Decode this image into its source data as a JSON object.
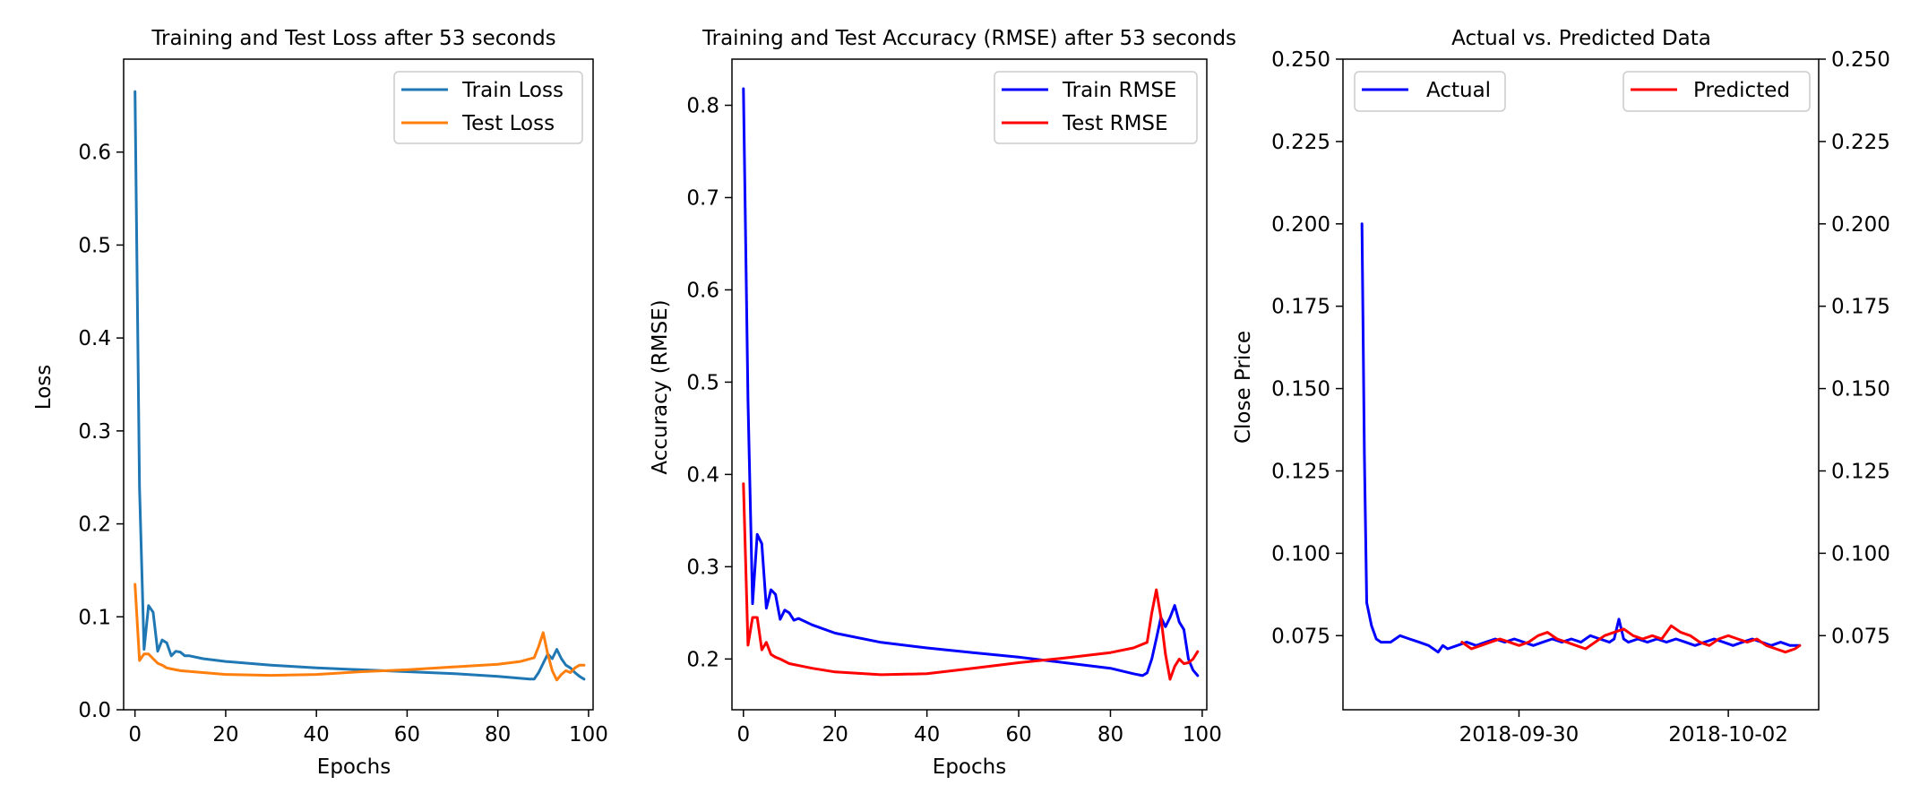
{
  "chart_data": [
    {
      "type": "line",
      "title": "Training and Test Loss after 53 seconds",
      "xlabel": "Epochs",
      "ylabel": "Loss",
      "xlim": [
        -2.5,
        101
      ],
      "ylim": [
        0,
        0.7
      ],
      "xticks": [
        0,
        20,
        40,
        60,
        80,
        100
      ],
      "yticks": [
        0.0,
        0.1,
        0.2,
        0.3,
        0.4,
        0.5,
        0.6
      ],
      "tick_decimals": 1,
      "legend": "upper right",
      "series": [
        {
          "name": "Train Loss",
          "color": "#1f77b4",
          "points": [
            [
              0,
              0.665
            ],
            [
              1,
              0.24
            ],
            [
              2,
              0.065
            ],
            [
              3,
              0.112
            ],
            [
              4,
              0.105
            ],
            [
              5,
              0.063
            ],
            [
              6,
              0.075
            ],
            [
              7,
              0.072
            ],
            [
              8,
              0.058
            ],
            [
              9,
              0.063
            ],
            [
              10,
              0.062
            ],
            [
              11,
              0.058
            ],
            [
              12,
              0.058
            ],
            [
              15,
              0.055
            ],
            [
              20,
              0.052
            ],
            [
              30,
              0.048
            ],
            [
              40,
              0.045
            ],
            [
              50,
              0.043
            ],
            [
              60,
              0.041
            ],
            [
              70,
              0.039
            ],
            [
              80,
              0.036
            ],
            [
              87,
              0.033
            ],
            [
              88,
              0.033
            ],
            [
              89,
              0.04
            ],
            [
              90,
              0.05
            ],
            [
              91,
              0.06
            ],
            [
              92,
              0.055
            ],
            [
              93,
              0.065
            ],
            [
              94,
              0.055
            ],
            [
              95,
              0.048
            ],
            [
              96,
              0.045
            ],
            [
              97,
              0.04
            ],
            [
              98,
              0.036
            ],
            [
              99,
              0.033
            ]
          ]
        },
        {
          "name": "Test Loss",
          "color": "#ff7f0e",
          "points": [
            [
              0,
              0.135
            ],
            [
              1,
              0.053
            ],
            [
              2,
              0.06
            ],
            [
              3,
              0.06
            ],
            [
              4,
              0.055
            ],
            [
              5,
              0.05
            ],
            [
              6,
              0.048
            ],
            [
              7,
              0.045
            ],
            [
              8,
              0.044
            ],
            [
              10,
              0.042
            ],
            [
              15,
              0.04
            ],
            [
              20,
              0.038
            ],
            [
              30,
              0.037
            ],
            [
              40,
              0.038
            ],
            [
              50,
              0.041
            ],
            [
              60,
              0.043
            ],
            [
              70,
              0.046
            ],
            [
              80,
              0.049
            ],
            [
              85,
              0.052
            ],
            [
              88,
              0.056
            ],
            [
              89,
              0.068
            ],
            [
              90,
              0.083
            ],
            [
              91,
              0.06
            ],
            [
              92,
              0.042
            ],
            [
              93,
              0.032
            ],
            [
              94,
              0.038
            ],
            [
              95,
              0.042
            ],
            [
              96,
              0.04
            ],
            [
              97,
              0.045
            ],
            [
              98,
              0.048
            ],
            [
              99,
              0.048
            ]
          ]
        }
      ]
    },
    {
      "type": "line",
      "title": "Training and Test Accuracy (RMSE) after 53 seconds",
      "xlabel": "Epochs",
      "ylabel": "Accuracy (RMSE)",
      "xlim": [
        -2.5,
        101
      ],
      "ylim": [
        0.145,
        0.85
      ],
      "xticks": [
        0,
        20,
        40,
        60,
        80,
        100
      ],
      "yticks": [
        0.2,
        0.3,
        0.4,
        0.5,
        0.6,
        0.7,
        0.8
      ],
      "tick_decimals": 1,
      "legend": "upper right",
      "series": [
        {
          "name": "Train RMSE",
          "color": "#0000ff",
          "points": [
            [
              0,
              0.818
            ],
            [
              1,
              0.48
            ],
            [
              2,
              0.26
            ],
            [
              3,
              0.335
            ],
            [
              4,
              0.325
            ],
            [
              5,
              0.255
            ],
            [
              6,
              0.275
            ],
            [
              7,
              0.27
            ],
            [
              8,
              0.243
            ],
            [
              9,
              0.253
            ],
            [
              10,
              0.25
            ],
            [
              11,
              0.242
            ],
            [
              12,
              0.244
            ],
            [
              15,
              0.237
            ],
            [
              20,
              0.228
            ],
            [
              30,
              0.218
            ],
            [
              40,
              0.212
            ],
            [
              50,
              0.207
            ],
            [
              60,
              0.202
            ],
            [
              70,
              0.196
            ],
            [
              80,
              0.19
            ],
            [
              85,
              0.184
            ],
            [
              87,
              0.182
            ],
            [
              88,
              0.185
            ],
            [
              89,
              0.2
            ],
            [
              90,
              0.222
            ],
            [
              91,
              0.245
            ],
            [
              92,
              0.235
            ],
            [
              93,
              0.245
            ],
            [
              94,
              0.258
            ],
            [
              95,
              0.24
            ],
            [
              96,
              0.232
            ],
            [
              97,
              0.2
            ],
            [
              98,
              0.188
            ],
            [
              99,
              0.182
            ]
          ]
        },
        {
          "name": "Test RMSE",
          "color": "#ff0000",
          "points": [
            [
              0,
              0.39
            ],
            [
              1,
              0.215
            ],
            [
              2,
              0.245
            ],
            [
              3,
              0.245
            ],
            [
              4,
              0.21
            ],
            [
              5,
              0.218
            ],
            [
              6,
              0.205
            ],
            [
              7,
              0.202
            ],
            [
              8,
              0.2
            ],
            [
              10,
              0.195
            ],
            [
              15,
              0.19
            ],
            [
              20,
              0.186
            ],
            [
              30,
              0.183
            ],
            [
              40,
              0.184
            ],
            [
              50,
              0.19
            ],
            [
              60,
              0.196
            ],
            [
              70,
              0.201
            ],
            [
              80,
              0.207
            ],
            [
              85,
              0.212
            ],
            [
              88,
              0.218
            ],
            [
              89,
              0.25
            ],
            [
              90,
              0.275
            ],
            [
              91,
              0.245
            ],
            [
              92,
              0.205
            ],
            [
              93,
              0.178
            ],
            [
              94,
              0.192
            ],
            [
              95,
              0.2
            ],
            [
              96,
              0.195
            ],
            [
              97,
              0.196
            ],
            [
              98,
              0.2
            ],
            [
              99,
              0.208
            ]
          ]
        }
      ]
    },
    {
      "type": "line",
      "title": "Actual vs. Predicted Data",
      "xlabel": "",
      "ylabel": "Close Price",
      "xlim": [
        0,
        100
      ],
      "ylim": [
        0.0525,
        0.25
      ],
      "xticks": [
        37,
        81
      ],
      "xtick_labels": [
        "2018-09-30",
        "2018-10-02"
      ],
      "yticks": [
        0.075,
        0.1,
        0.125,
        0.15,
        0.175,
        0.2,
        0.225,
        0.25
      ],
      "tick_decimals": 3,
      "right_axis": true,
      "right_yticks": [
        0.075,
        0.1,
        0.125,
        0.15,
        0.175,
        0.2,
        0.225,
        0.25
      ],
      "legend": "upper left / upper right",
      "series": [
        {
          "name": "Actual",
          "color": "#0000ff",
          "points": [
            [
              4,
              0.2
            ],
            [
              4.5,
              0.13
            ],
            [
              5,
              0.085
            ],
            [
              6,
              0.078
            ],
            [
              7,
              0.074
            ],
            [
              8,
              0.073
            ],
            [
              10,
              0.073
            ],
            [
              11,
              0.074
            ],
            [
              12,
              0.075
            ],
            [
              14,
              0.074
            ],
            [
              16,
              0.073
            ],
            [
              18,
              0.072
            ],
            [
              19,
              0.071
            ],
            [
              20,
              0.07
            ],
            [
              21,
              0.072
            ],
            [
              22,
              0.071
            ],
            [
              24,
              0.072
            ],
            [
              26,
              0.073
            ],
            [
              28,
              0.072
            ],
            [
              30,
              0.073
            ],
            [
              32,
              0.074
            ],
            [
              34,
              0.073
            ],
            [
              36,
              0.074
            ],
            [
              38,
              0.073
            ],
            [
              40,
              0.072
            ],
            [
              42,
              0.073
            ],
            [
              44,
              0.074
            ],
            [
              46,
              0.073
            ],
            [
              48,
              0.074
            ],
            [
              50,
              0.073
            ],
            [
              52,
              0.075
            ],
            [
              54,
              0.074
            ],
            [
              56,
              0.073
            ],
            [
              57,
              0.074
            ],
            [
              58,
              0.08
            ],
            [
              59,
              0.074
            ],
            [
              60,
              0.073
            ],
            [
              62,
              0.074
            ],
            [
              64,
              0.073
            ],
            [
              66,
              0.074
            ],
            [
              68,
              0.073
            ],
            [
              70,
              0.074
            ],
            [
              72,
              0.073
            ],
            [
              74,
              0.072
            ],
            [
              76,
              0.073
            ],
            [
              78,
              0.074
            ],
            [
              80,
              0.073
            ],
            [
              82,
              0.072
            ],
            [
              84,
              0.073
            ],
            [
              86,
              0.074
            ],
            [
              88,
              0.073
            ],
            [
              90,
              0.072
            ],
            [
              92,
              0.073
            ],
            [
              94,
              0.072
            ],
            [
              96,
              0.072
            ]
          ]
        },
        {
          "name": "Predicted",
          "color": "#ff0000",
          "points": [
            [
              25,
              0.073
            ],
            [
              27,
              0.071
            ],
            [
              29,
              0.072
            ],
            [
              31,
              0.073
            ],
            [
              33,
              0.074
            ],
            [
              35,
              0.073
            ],
            [
              37,
              0.072
            ],
            [
              39,
              0.073
            ],
            [
              41,
              0.075
            ],
            [
              43,
              0.076
            ],
            [
              45,
              0.074
            ],
            [
              47,
              0.073
            ],
            [
              49,
              0.072
            ],
            [
              51,
              0.071
            ],
            [
              53,
              0.073
            ],
            [
              55,
              0.075
            ],
            [
              57,
              0.076
            ],
            [
              59,
              0.077
            ],
            [
              61,
              0.075
            ],
            [
              63,
              0.074
            ],
            [
              65,
              0.075
            ],
            [
              67,
              0.074
            ],
            [
              69,
              0.078
            ],
            [
              71,
              0.076
            ],
            [
              73,
              0.075
            ],
            [
              75,
              0.073
            ],
            [
              77,
              0.072
            ],
            [
              79,
              0.074
            ],
            [
              81,
              0.075
            ],
            [
              83,
              0.074
            ],
            [
              85,
              0.073
            ],
            [
              87,
              0.074
            ],
            [
              89,
              0.072
            ],
            [
              91,
              0.071
            ],
            [
              93,
              0.07
            ],
            [
              95,
              0.071
            ],
            [
              96,
              0.072
            ]
          ]
        }
      ]
    }
  ]
}
